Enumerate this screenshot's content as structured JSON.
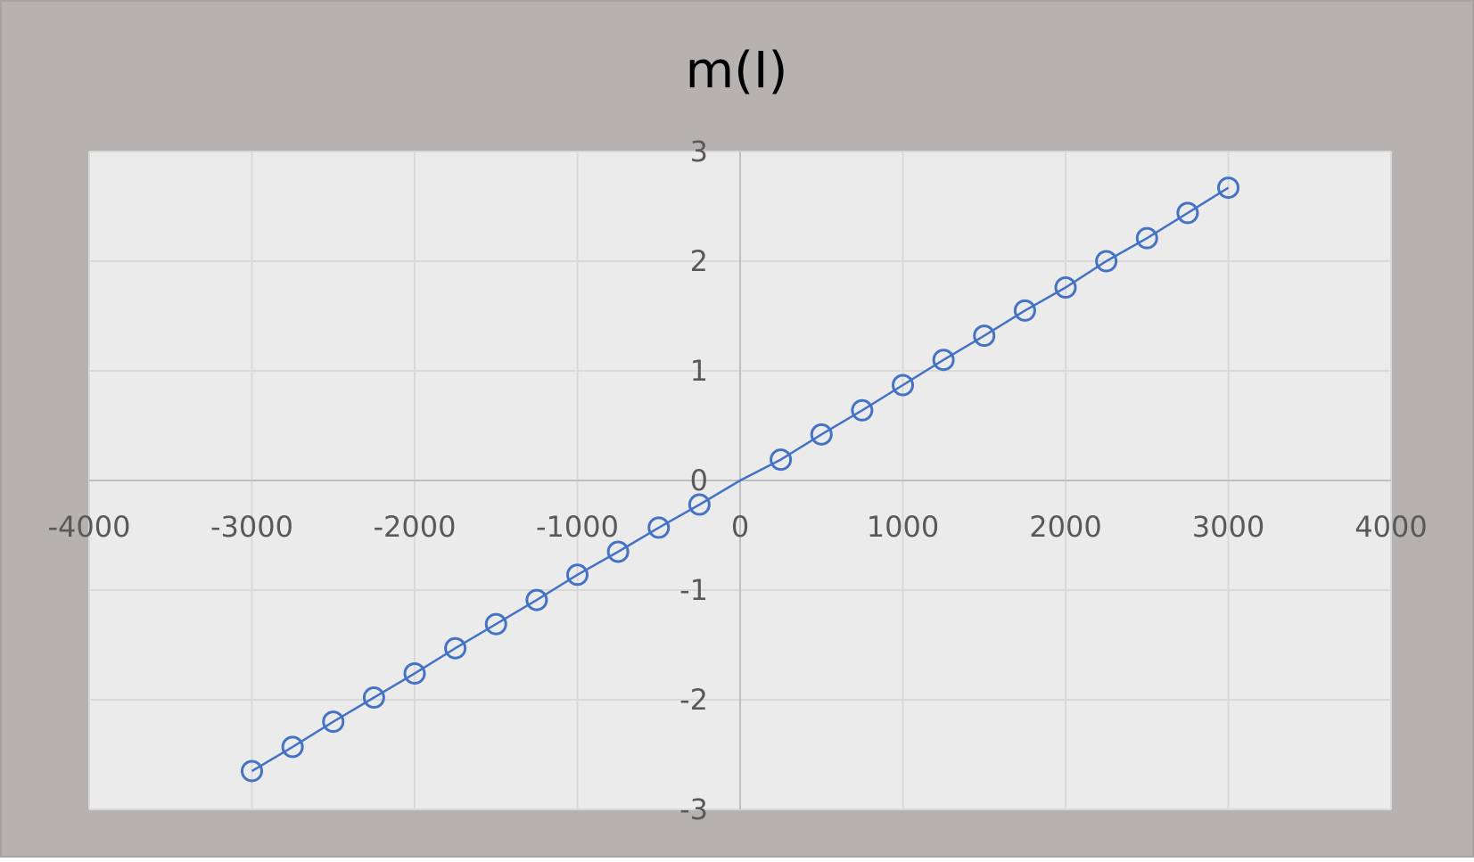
{
  "colors": {
    "frame_background": "#b5b2b1",
    "plot_background": "#ebebeb",
    "gridline": "#d9d9d9",
    "axis_line": "#bfbfbf",
    "tick_label": "#595959",
    "title": "#000000",
    "series": "#4472c4"
  },
  "chart_data": {
    "type": "scatter",
    "title": "m(I)",
    "xlabel": "",
    "ylabel": "",
    "xlim": [
      -4000,
      4000
    ],
    "ylim": [
      -3,
      3
    ],
    "xticks": [
      -4000,
      -3000,
      -2000,
      -1000,
      0,
      1000,
      2000,
      3000,
      4000
    ],
    "yticks": [
      -3,
      -2,
      -1,
      0,
      1,
      2,
      3
    ],
    "grid": true,
    "legend": "none",
    "series": [
      {
        "marker": "open-circle",
        "line": true,
        "x": [
          -3000,
          -2750,
          -2500,
          -2250,
          -2000,
          -1750,
          -1500,
          -1250,
          -1000,
          -750,
          -500,
          -250,
          250,
          500,
          750,
          1000,
          1250,
          1500,
          1750,
          2000,
          2250,
          2500,
          2750,
          3000
        ],
        "y": [
          -2.65,
          -2.43,
          -2.2,
          -1.98,
          -1.76,
          -1.53,
          -1.31,
          -1.09,
          -0.86,
          -0.65,
          -0.43,
          -0.22,
          0.19,
          0.42,
          0.64,
          0.87,
          1.1,
          1.32,
          1.55,
          1.76,
          2.0,
          2.21,
          2.44,
          2.67
        ]
      }
    ]
  }
}
